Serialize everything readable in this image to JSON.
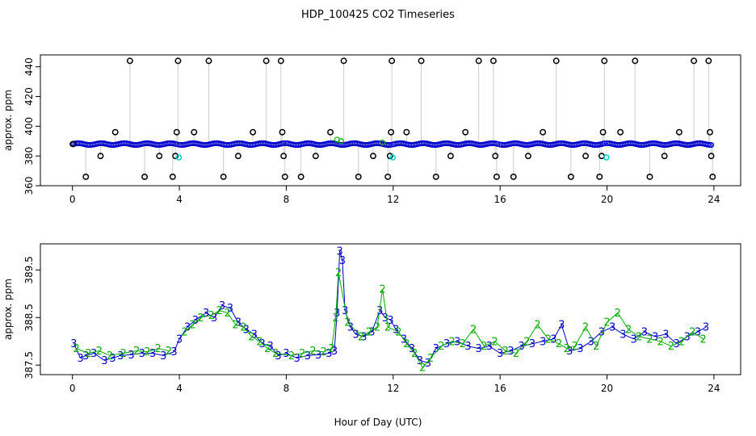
{
  "title": "HDP_100425  CO2 Timeseries",
  "xlabel": "Hour of Day (UTC)",
  "colors": {
    "line_gray": "#9a9a9a",
    "mode_black": "#000000",
    "mode_blue": "#0000cc",
    "mode_green": "#00aa00",
    "mode_cyan": "#00cccc"
  },
  "chart_data": [
    {
      "type": "scatter",
      "name": "top-panel",
      "ylabel": "approx. ppm",
      "xlim": [
        -1.2,
        25
      ],
      "ylim": [
        360,
        448
      ],
      "xticks": [
        0,
        4,
        8,
        12,
        16,
        20,
        24
      ],
      "yticks": [
        360,
        380,
        400,
        420,
        440
      ],
      "xtick_labels": [
        "0",
        "4",
        "8",
        "12",
        "16",
        "20",
        "24"
      ],
      "ytick_labels": [
        "360",
        "380",
        "400",
        "420",
        "440"
      ],
      "baseline_hour_segments": [
        [
          0.0,
          3.9
        ],
        [
          4.0,
          7.9
        ],
        [
          8.0,
          11.9
        ],
        [
          12.0,
          15.9
        ],
        [
          16.0,
          19.9
        ],
        [
          20.0,
          23.9
        ]
      ],
      "baseline_level": 388,
      "calibration_points": [
        {
          "x": 0.02,
          "y": 388
        },
        {
          "x": 0.5,
          "y": 366
        },
        {
          "x": 1.05,
          "y": 380
        },
        {
          "x": 1.6,
          "y": 396
        },
        {
          "x": 2.15,
          "y": 444
        },
        {
          "x": 2.7,
          "y": 366
        },
        {
          "x": 3.25,
          "y": 380
        },
        {
          "x": 3.75,
          "y": 366
        },
        {
          "x": 3.85,
          "y": 380
        },
        {
          "x": 3.9,
          "y": 396
        },
        {
          "x": 3.95,
          "y": 444
        },
        {
          "x": 4.55,
          "y": 396
        },
        {
          "x": 5.1,
          "y": 444
        },
        {
          "x": 5.65,
          "y": 366
        },
        {
          "x": 6.2,
          "y": 380
        },
        {
          "x": 6.75,
          "y": 396
        },
        {
          "x": 7.25,
          "y": 444
        },
        {
          "x": 7.8,
          "y": 444
        },
        {
          "x": 7.85,
          "y": 396
        },
        {
          "x": 7.9,
          "y": 380
        },
        {
          "x": 7.95,
          "y": 366
        },
        {
          "x": 8.55,
          "y": 366
        },
        {
          "x": 9.1,
          "y": 380
        },
        {
          "x": 9.65,
          "y": 396
        },
        {
          "x": 10.15,
          "y": 444
        },
        {
          "x": 10.7,
          "y": 366
        },
        {
          "x": 11.25,
          "y": 380
        },
        {
          "x": 11.8,
          "y": 366
        },
        {
          "x": 11.88,
          "y": 380
        },
        {
          "x": 11.92,
          "y": 396
        },
        {
          "x": 11.95,
          "y": 444
        },
        {
          "x": 12.5,
          "y": 396
        },
        {
          "x": 13.05,
          "y": 444
        },
        {
          "x": 13.6,
          "y": 366
        },
        {
          "x": 14.15,
          "y": 380
        },
        {
          "x": 14.7,
          "y": 396
        },
        {
          "x": 15.2,
          "y": 444
        },
        {
          "x": 15.75,
          "y": 444
        },
        {
          "x": 15.82,
          "y": 380
        },
        {
          "x": 15.87,
          "y": 366
        },
        {
          "x": 16.5,
          "y": 366
        },
        {
          "x": 17.05,
          "y": 380
        },
        {
          "x": 17.6,
          "y": 396
        },
        {
          "x": 18.1,
          "y": 444
        },
        {
          "x": 18.65,
          "y": 366
        },
        {
          "x": 19.2,
          "y": 380
        },
        {
          "x": 19.72,
          "y": 366
        },
        {
          "x": 19.8,
          "y": 380
        },
        {
          "x": 19.85,
          "y": 396
        },
        {
          "x": 19.9,
          "y": 444
        },
        {
          "x": 20.5,
          "y": 396
        },
        {
          "x": 21.05,
          "y": 444
        },
        {
          "x": 21.6,
          "y": 366
        },
        {
          "x": 22.15,
          "y": 380
        },
        {
          "x": 22.7,
          "y": 396
        },
        {
          "x": 23.25,
          "y": 444
        },
        {
          "x": 23.8,
          "y": 444
        },
        {
          "x": 23.85,
          "y": 396
        },
        {
          "x": 23.9,
          "y": 380
        },
        {
          "x": 23.95,
          "y": 366
        }
      ],
      "cyan_points": [
        {
          "x": 3.98,
          "y": 379
        },
        {
          "x": 11.98,
          "y": 379
        },
        {
          "x": 19.98,
          "y": 379
        }
      ],
      "green_points": [
        {
          "x": 9.9,
          "y": 391
        },
        {
          "x": 10.05,
          "y": 390
        },
        {
          "x": 11.6,
          "y": 389
        }
      ]
    },
    {
      "type": "line",
      "name": "bottom-panel",
      "ylabel": "approx. ppm",
      "xlim": [
        -1.2,
        25
      ],
      "ylim": [
        387.3,
        390.05
      ],
      "xticks": [
        0,
        4,
        8,
        12,
        16,
        20,
        24
      ],
      "yticks": [
        387.5,
        388.5,
        389.5
      ],
      "xtick_labels": [
        "0",
        "4",
        "8",
        "12",
        "16",
        "20",
        "24"
      ],
      "ytick_labels": [
        "387.5",
        "388.5",
        "389.5"
      ],
      "mode_markers": [
        "3",
        "2"
      ],
      "series": [
        {
          "name": "mode-3",
          "marker": "3",
          "color": "#0000cc",
          "x": [
            0.05,
            0.3,
            0.5,
            0.8,
            1.2,
            1.5,
            1.8,
            2.2,
            2.6,
            3.0,
            3.4,
            3.8,
            4.0,
            4.3,
            4.6,
            5.0,
            5.3,
            5.6,
            5.9,
            6.2,
            6.5,
            6.8,
            7.1,
            7.4,
            7.7,
            8.0,
            8.4,
            8.8,
            9.2,
            9.6,
            9.8,
            9.9,
            10.0,
            10.1,
            10.2,
            10.4,
            10.6,
            10.9,
            11.2,
            11.5,
            11.7,
            11.9,
            12.1,
            12.4,
            12.7,
            13.0,
            13.3,
            13.6,
            14.0,
            14.4,
            14.8,
            15.2,
            15.6,
            16.0,
            16.4,
            16.8,
            17.2,
            17.6,
            18.0,
            18.3,
            18.6,
            19.0,
            19.4,
            19.8,
            20.2,
            20.6,
            21.0,
            21.4,
            21.8,
            22.2,
            22.6,
            23.0,
            23.4,
            23.7
          ],
          "y": [
            387.95,
            387.65,
            387.7,
            387.75,
            387.6,
            387.65,
            387.7,
            387.72,
            387.75,
            387.75,
            387.7,
            387.78,
            388.05,
            388.3,
            388.45,
            388.6,
            388.5,
            388.75,
            388.7,
            388.4,
            388.25,
            388.15,
            387.95,
            387.9,
            387.7,
            387.75,
            387.65,
            387.7,
            387.72,
            387.75,
            387.8,
            388.6,
            389.9,
            389.7,
            388.65,
            388.3,
            388.15,
            388.1,
            388.2,
            388.65,
            388.5,
            388.45,
            388.25,
            388.05,
            387.85,
            387.6,
            387.55,
            387.85,
            387.95,
            388.0,
            387.9,
            387.85,
            387.9,
            387.75,
            387.8,
            387.9,
            387.95,
            388.0,
            388.05,
            388.35,
            387.8,
            387.85,
            388.0,
            388.2,
            388.3,
            388.15,
            388.05,
            388.2,
            388.1,
            388.15,
            387.95,
            388.1,
            388.2,
            388.3
          ]
        },
        {
          "name": "mode-2",
          "marker": "2",
          "color": "#00aa00",
          "x": [
            0.15,
            0.6,
            1.0,
            1.4,
            1.9,
            2.4,
            2.8,
            3.2,
            3.6,
            4.2,
            4.5,
            4.8,
            5.2,
            5.5,
            5.8,
            6.1,
            6.4,
            6.7,
            7.0,
            7.3,
            7.6,
            8.2,
            8.6,
            9.0,
            9.4,
            9.7,
            9.85,
            9.95,
            10.3,
            10.8,
            11.1,
            11.4,
            11.6,
            11.8,
            12.2,
            12.5,
            12.8,
            13.1,
            13.4,
            13.8,
            14.2,
            14.6,
            15.0,
            15.4,
            15.8,
            16.2,
            16.6,
            17.0,
            17.4,
            17.8,
            18.2,
            18.5,
            18.8,
            19.2,
            19.6,
            20.0,
            20.4,
            20.8,
            21.2,
            21.6,
            22.0,
            22.4,
            22.8,
            23.2,
            23.6
          ],
          "y": [
            387.85,
            387.75,
            387.8,
            387.7,
            387.75,
            387.8,
            387.78,
            387.85,
            387.8,
            388.2,
            388.35,
            388.5,
            388.55,
            388.65,
            388.6,
            388.35,
            388.3,
            388.1,
            388.0,
            387.85,
            387.75,
            387.7,
            387.75,
            387.8,
            387.78,
            387.85,
            388.5,
            389.45,
            388.4,
            388.1,
            388.2,
            388.3,
            389.1,
            388.3,
            388.2,
            387.95,
            387.75,
            387.45,
            387.65,
            387.9,
            388.0,
            387.95,
            388.25,
            387.9,
            388.0,
            387.8,
            387.75,
            388.0,
            388.35,
            388.05,
            387.95,
            387.85,
            387.9,
            388.3,
            387.9,
            388.4,
            388.6,
            388.25,
            388.1,
            388.05,
            388.0,
            387.9,
            388.0,
            388.2,
            388.05
          ]
        }
      ]
    }
  ]
}
